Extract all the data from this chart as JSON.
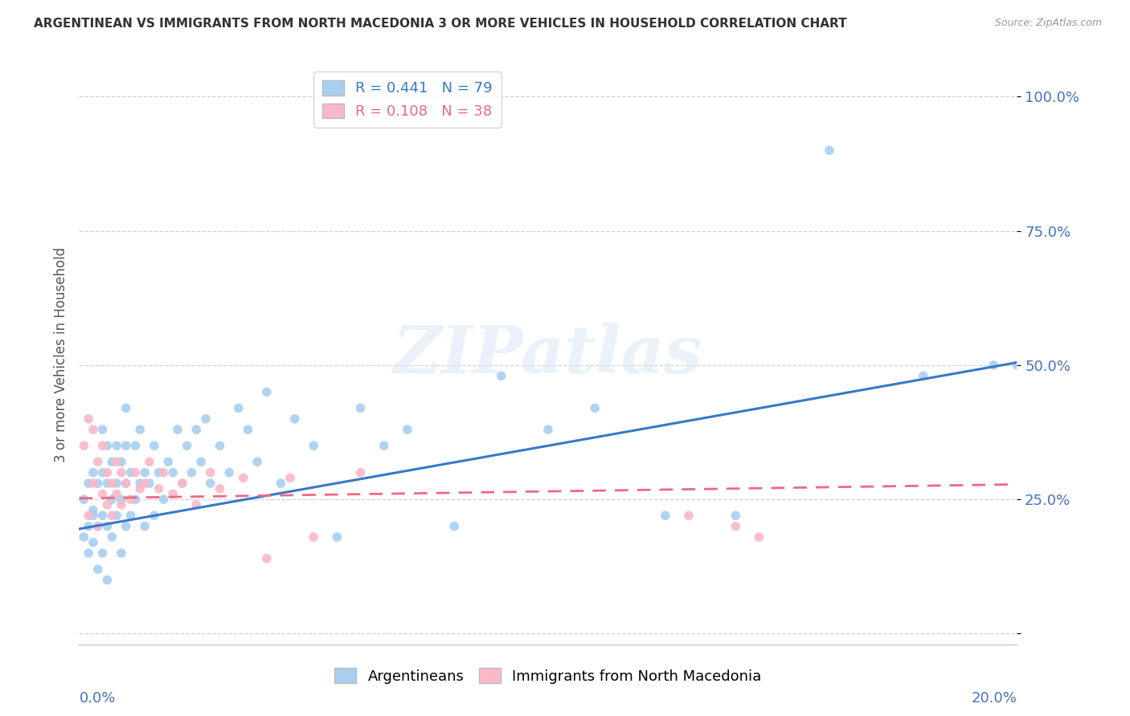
{
  "title": "ARGENTINEAN VS IMMIGRANTS FROM NORTH MACEDONIA 3 OR MORE VEHICLES IN HOUSEHOLD CORRELATION CHART",
  "source": "Source: ZipAtlas.com",
  "ylabel": "3 or more Vehicles in Household",
  "ytick_values": [
    0.0,
    0.25,
    0.5,
    0.75,
    1.0
  ],
  "ytick_labels": [
    "",
    "25.0%",
    "50.0%",
    "75.0%",
    "100.0%"
  ],
  "xlim": [
    0.0,
    0.2
  ],
  "ylim": [
    -0.02,
    1.06
  ],
  "blue_R": 0.441,
  "blue_N": 79,
  "pink_R": 0.108,
  "pink_N": 38,
  "blue_color": "#a8cff0",
  "pink_color": "#f9b8c8",
  "blue_line_color": "#3878c8",
  "pink_line_color": "#f06880",
  "legend_label_blue": "Argentineans",
  "legend_label_pink": "Immigrants from North Macedonia",
  "blue_line_x": [
    0.0,
    0.2
  ],
  "blue_line_y": [
    0.195,
    0.505
  ],
  "pink_line_x": [
    0.0,
    0.2
  ],
  "pink_line_y": [
    0.252,
    0.278
  ],
  "blue_scatter_x": [
    0.001,
    0.001,
    0.002,
    0.002,
    0.002,
    0.003,
    0.003,
    0.003,
    0.003,
    0.004,
    0.004,
    0.004,
    0.005,
    0.005,
    0.005,
    0.005,
    0.006,
    0.006,
    0.006,
    0.006,
    0.007,
    0.007,
    0.007,
    0.008,
    0.008,
    0.008,
    0.009,
    0.009,
    0.009,
    0.01,
    0.01,
    0.01,
    0.01,
    0.011,
    0.011,
    0.012,
    0.012,
    0.013,
    0.013,
    0.014,
    0.014,
    0.015,
    0.016,
    0.016,
    0.017,
    0.018,
    0.019,
    0.02,
    0.021,
    0.022,
    0.023,
    0.024,
    0.025,
    0.026,
    0.027,
    0.028,
    0.03,
    0.032,
    0.034,
    0.036,
    0.038,
    0.04,
    0.043,
    0.046,
    0.05,
    0.055,
    0.06,
    0.065,
    0.07,
    0.08,
    0.09,
    0.1,
    0.11,
    0.125,
    0.14,
    0.16,
    0.18,
    0.195,
    0.2
  ],
  "blue_scatter_y": [
    0.18,
    0.25,
    0.2,
    0.28,
    0.15,
    0.22,
    0.17,
    0.3,
    0.23,
    0.12,
    0.2,
    0.28,
    0.15,
    0.22,
    0.3,
    0.38,
    0.1,
    0.2,
    0.28,
    0.35,
    0.18,
    0.25,
    0.32,
    0.22,
    0.28,
    0.35,
    0.15,
    0.25,
    0.32,
    0.2,
    0.28,
    0.35,
    0.42,
    0.22,
    0.3,
    0.25,
    0.35,
    0.28,
    0.38,
    0.2,
    0.3,
    0.28,
    0.35,
    0.22,
    0.3,
    0.25,
    0.32,
    0.3,
    0.38,
    0.28,
    0.35,
    0.3,
    0.38,
    0.32,
    0.4,
    0.28,
    0.35,
    0.3,
    0.42,
    0.38,
    0.32,
    0.45,
    0.28,
    0.4,
    0.35,
    0.18,
    0.42,
    0.35,
    0.38,
    0.2,
    0.48,
    0.38,
    0.42,
    0.22,
    0.22,
    0.9,
    0.48,
    0.5,
    0.5
  ],
  "pink_scatter_x": [
    0.001,
    0.002,
    0.002,
    0.003,
    0.003,
    0.004,
    0.004,
    0.005,
    0.005,
    0.006,
    0.006,
    0.007,
    0.007,
    0.008,
    0.008,
    0.009,
    0.009,
    0.01,
    0.011,
    0.012,
    0.013,
    0.014,
    0.015,
    0.017,
    0.018,
    0.02,
    0.022,
    0.025,
    0.028,
    0.03,
    0.035,
    0.04,
    0.045,
    0.05,
    0.06,
    0.13,
    0.14,
    0.145
  ],
  "pink_scatter_y": [
    0.35,
    0.22,
    0.4,
    0.28,
    0.38,
    0.2,
    0.32,
    0.26,
    0.35,
    0.24,
    0.3,
    0.22,
    0.28,
    0.26,
    0.32,
    0.24,
    0.3,
    0.28,
    0.25,
    0.3,
    0.27,
    0.28,
    0.32,
    0.27,
    0.3,
    0.26,
    0.28,
    0.24,
    0.3,
    0.27,
    0.29,
    0.14,
    0.29,
    0.18,
    0.3,
    0.22,
    0.2,
    0.18
  ]
}
